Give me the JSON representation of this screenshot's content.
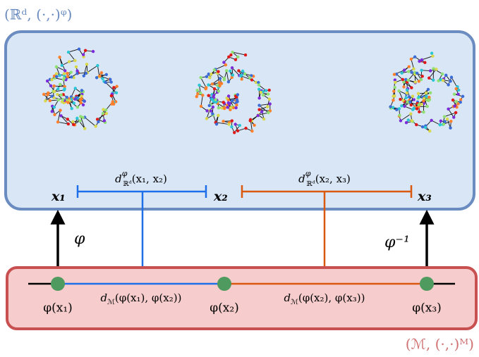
{
  "top_space": {
    "label": "(ℝᵈ, (·,·)ᵠ)"
  },
  "bottom_space": {
    "label": "(ℳ, (·,·)ᴹ)"
  },
  "embeddings": [
    "x₁",
    "x₂",
    "x₃"
  ],
  "points": [
    "φ(x₁)",
    "φ(x₂)",
    "φ(x₃)"
  ],
  "maps": {
    "forward": "φ",
    "inverse": "φ⁻¹"
  },
  "embedding_distances": [
    {
      "symbol": "d",
      "sup": "φ",
      "sub": "ℝᵈ",
      "args": "(x₁, x₂)"
    },
    {
      "symbol": "d",
      "sup": "φ",
      "sub": "ℝᵈ",
      "args": "(x₂, x₃)"
    }
  ],
  "manifold_distances": [
    {
      "symbol": "d",
      "sub": "ℳ",
      "args": "(φ(x₁), φ(x₂))"
    },
    {
      "symbol": "d",
      "sub": "ℳ",
      "args": "(φ(x₂), φ(x₃))"
    }
  ]
}
